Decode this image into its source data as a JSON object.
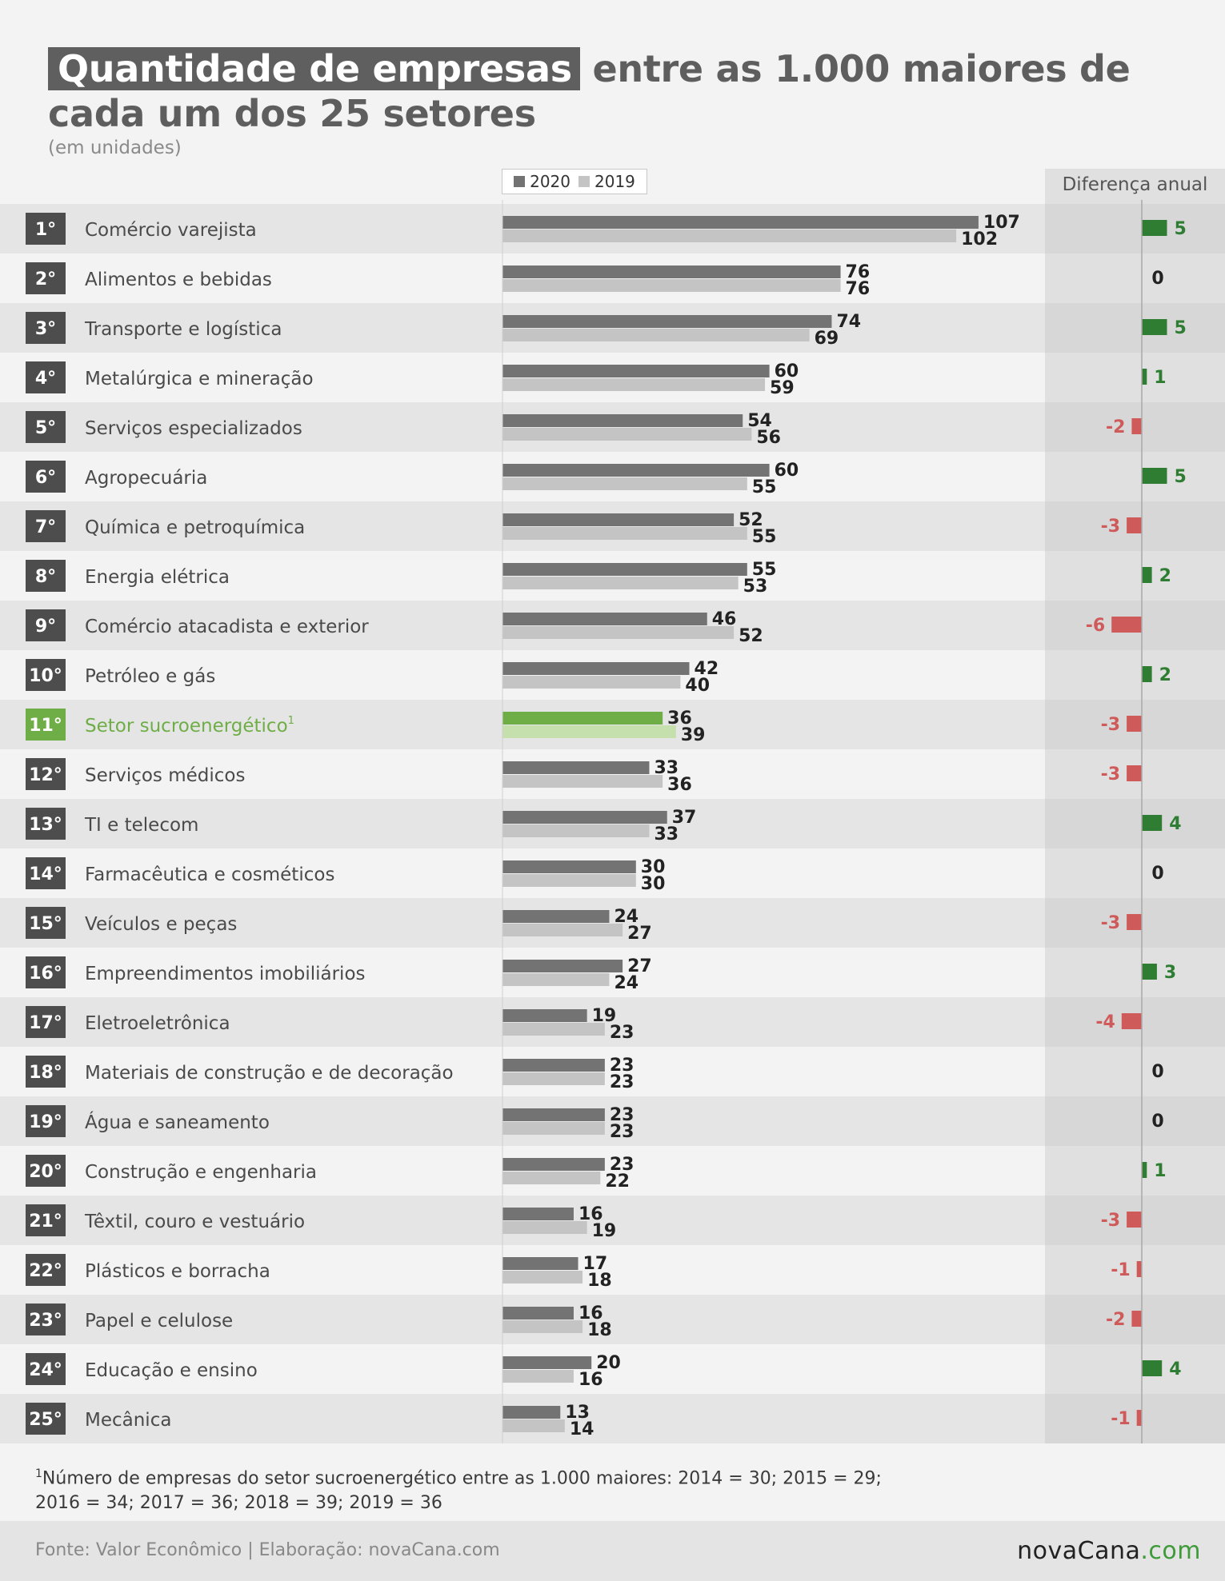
{
  "title": {
    "highlight": "Quantidade de empresas",
    "rest_line1": " entre as 1.000 maiores de",
    "line2": "cada um dos 25 setores",
    "subtitle": "(em unidades)"
  },
  "legend": {
    "label_2020": "2020",
    "label_2019": "2019"
  },
  "diff_header": "Diferença anual",
  "colors": {
    "bar_2020": "#737373",
    "bar_2019": "#c4c4c4",
    "highlight_2020": "#6fae47",
    "highlight_2019": "#c5dfad",
    "positive": "#2e7d32",
    "negative": "#cf5a5a",
    "zero": "#222222",
    "rank_badge": "#4d4d4d",
    "highlight_badge": "#6fae47",
    "highlight_text": "#6fae47"
  },
  "chart_data": {
    "type": "bar",
    "series": [
      {
        "name": "2020",
        "values": [
          107,
          76,
          74,
          60,
          54,
          60,
          52,
          55,
          46,
          42,
          36,
          33,
          37,
          30,
          24,
          27,
          19,
          23,
          23,
          23,
          16,
          17,
          16,
          20,
          13
        ]
      },
      {
        "name": "2019",
        "values": [
          102,
          76,
          69,
          59,
          56,
          55,
          55,
          53,
          52,
          40,
          39,
          36,
          33,
          30,
          27,
          24,
          23,
          23,
          23,
          22,
          19,
          18,
          18,
          16,
          14
        ]
      }
    ],
    "ranks": [
      "1°",
      "2°",
      "3°",
      "4°",
      "5°",
      "6°",
      "7°",
      "8°",
      "9°",
      "10°",
      "11°",
      "12°",
      "13°",
      "14°",
      "15°",
      "16°",
      "17°",
      "18°",
      "19°",
      "20°",
      "21°",
      "22°",
      "23°",
      "24°",
      "25°"
    ],
    "categories": [
      "Comércio varejista",
      "Alimentos e bebidas",
      "Transporte e logística",
      "Metalúrgica e mineração",
      "Serviços especializados",
      "Agropecuária",
      "Química e petroquímica",
      "Energia elétrica",
      "Comércio atacadista e exterior",
      "Petróleo e gás",
      "Setor sucroenergético",
      "Serviços médicos",
      "TI e telecom",
      "Farmacêutica e cosméticos",
      "Veículos e peças",
      "Empreendimentos imobiliários",
      "Eletroeletrônica",
      "Materiais de construção e de decoração",
      "Água e saneamento",
      "Construção e engenharia",
      "Têxtil, couro e vestuário",
      "Plásticos e borracha",
      "Papel e celulose",
      "Educação e ensino",
      "Mecânica"
    ],
    "highlight_index": 10,
    "highlight_footnote_marker": "1",
    "diff_labels": [
      "5",
      "0",
      "5",
      "1",
      "-2",
      "5",
      "-3",
      "2",
      "-6",
      "2",
      "-3",
      "-3",
      "4",
      "0",
      "-3",
      "3",
      "-4",
      "0",
      "0",
      "1",
      "-3",
      "-1",
      "-2",
      "4",
      "-1"
    ],
    "diff_values": [
      5,
      0,
      5,
      1,
      -2,
      5,
      -3,
      2,
      -6,
      2,
      -3,
      -3,
      4,
      0,
      -3,
      3,
      -4,
      0,
      0,
      1,
      -3,
      -1,
      -2,
      4,
      -1
    ],
    "value_max": 107
  },
  "footnote": {
    "marker": "1",
    "line1": "Número de empresas do setor sucroenergético entre as 1.000 maiores: 2014 = 30; 2015 = 29;",
    "line2": "2016 = 34; 2017 = 36; 2018 = 39; 2019 = 36"
  },
  "footer": {
    "source": "Fonte: Valor Econômico | Elaboração: novaCana.com",
    "logo_main": "novaCana",
    "logo_suffix": ".com"
  }
}
